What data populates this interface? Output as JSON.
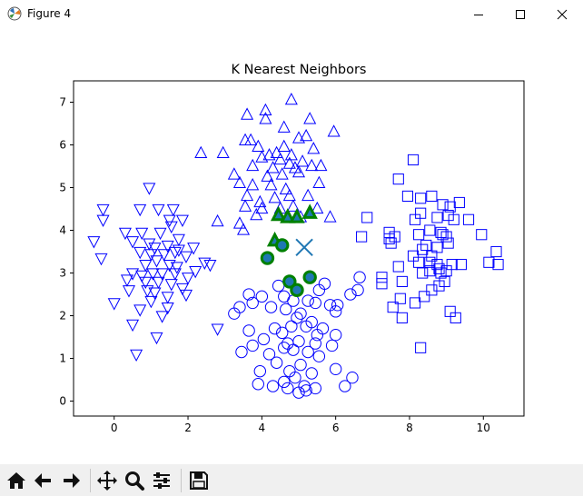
{
  "window": {
    "title": "Figure 4",
    "app_icon": "matplotlib-icon",
    "controls": [
      "minimize-icon",
      "maximize-icon",
      "close-icon"
    ]
  },
  "toolbar": {
    "buttons": [
      "home-icon",
      "back-icon",
      "forward-icon",
      "pan-icon",
      "zoom-icon",
      "configure-subplots-icon",
      "save-icon"
    ]
  },
  "colors": {
    "marker_edge": "#0000ff",
    "neighbor_edge": "#008000",
    "neighbor_fill": "#1f77b4",
    "query_marker": "#1f77b4"
  },
  "chart_data": {
    "type": "scatter",
    "title": "K Nearest Neighbors",
    "xlabel": "",
    "ylabel": "",
    "xlim": [
      -1.1,
      11.1
    ],
    "ylim": [
      -0.35,
      7.5
    ],
    "xticks": [
      0,
      2,
      4,
      6,
      8,
      10
    ],
    "yticks": [
      0,
      1,
      2,
      3,
      4,
      5,
      6,
      7
    ],
    "grid": false,
    "series": [
      {
        "marker": "triangle-up",
        "points": [
          [
            4.8,
            7.05
          ],
          [
            4.1,
            6.8
          ],
          [
            3.6,
            6.7
          ],
          [
            4.1,
            6.6
          ],
          [
            5.3,
            6.6
          ],
          [
            4.6,
            6.4
          ],
          [
            5.95,
            6.3
          ],
          [
            3.55,
            6.1
          ],
          [
            3.7,
            6.1
          ],
          [
            5.0,
            6.15
          ],
          [
            5.2,
            6.2
          ],
          [
            3.9,
            5.95
          ],
          [
            4.6,
            5.95
          ],
          [
            4.2,
            5.75
          ],
          [
            4.4,
            5.8
          ],
          [
            4.8,
            5.75
          ],
          [
            5.4,
            5.9
          ],
          [
            2.35,
            5.8
          ],
          [
            2.95,
            5.8
          ],
          [
            4.0,
            5.7
          ],
          [
            4.5,
            5.65
          ],
          [
            4.75,
            5.55
          ],
          [
            5.1,
            5.6
          ],
          [
            3.75,
            5.5
          ],
          [
            5.35,
            5.5
          ],
          [
            4.3,
            5.45
          ],
          [
            4.9,
            5.45
          ],
          [
            5.6,
            5.5
          ],
          [
            3.25,
            5.3
          ],
          [
            4.15,
            5.25
          ],
          [
            4.55,
            5.3
          ],
          [
            5.0,
            5.35
          ],
          [
            3.4,
            5.1
          ],
          [
            3.75,
            5.05
          ],
          [
            4.25,
            5.05
          ],
          [
            4.65,
            4.95
          ],
          [
            5.55,
            5.1
          ],
          [
            3.6,
            4.8
          ],
          [
            3.95,
            4.65
          ],
          [
            4.35,
            4.75
          ],
          [
            4.75,
            4.8
          ],
          [
            5.25,
            4.8
          ],
          [
            3.55,
            4.55
          ],
          [
            4.0,
            4.5
          ],
          [
            4.5,
            4.5
          ],
          [
            4.85,
            4.55
          ],
          [
            5.5,
            4.5
          ],
          [
            3.85,
            4.35
          ],
          [
            5.05,
            4.3
          ],
          [
            5.85,
            4.3
          ],
          [
            2.8,
            4.2
          ],
          [
            3.4,
            4.15
          ],
          [
            3.5,
            4.0
          ]
        ]
      },
      {
        "marker": "triangle-down",
        "points": [
          [
            0.95,
            5.0
          ],
          [
            -0.3,
            4.5
          ],
          [
            0.7,
            4.5
          ],
          [
            1.2,
            4.5
          ],
          [
            1.6,
            4.5
          ],
          [
            -0.3,
            4.25
          ],
          [
            1.5,
            4.25
          ],
          [
            1.85,
            4.25
          ],
          [
            1.55,
            4.1
          ],
          [
            0.3,
            3.95
          ],
          [
            0.75,
            3.95
          ],
          [
            1.25,
            3.95
          ],
          [
            1.75,
            3.8
          ],
          [
            -0.55,
            3.75
          ],
          [
            0.5,
            3.75
          ],
          [
            0.95,
            3.7
          ],
          [
            1.1,
            3.6
          ],
          [
            1.45,
            3.65
          ],
          [
            1.75,
            3.55
          ],
          [
            2.15,
            3.6
          ],
          [
            0.7,
            3.5
          ],
          [
            1.0,
            3.45
          ],
          [
            1.35,
            3.45
          ],
          [
            1.65,
            3.5
          ],
          [
            1.95,
            3.4
          ],
          [
            -0.35,
            3.35
          ],
          [
            1.15,
            3.3
          ],
          [
            2.45,
            3.25
          ],
          [
            2.6,
            3.2
          ],
          [
            0.85,
            3.2
          ],
          [
            1.5,
            3.2
          ],
          [
            1.7,
            3.15
          ],
          [
            2.2,
            3.05
          ],
          [
            0.5,
            3.0
          ],
          [
            0.75,
            2.95
          ],
          [
            1.05,
            3.0
          ],
          [
            1.3,
            3.0
          ],
          [
            1.65,
            3.0
          ],
          [
            2.0,
            2.9
          ],
          [
            0.35,
            2.85
          ],
          [
            0.85,
            2.8
          ],
          [
            1.2,
            2.8
          ],
          [
            1.55,
            2.75
          ],
          [
            1.85,
            2.65
          ],
          [
            0.9,
            2.6
          ],
          [
            0.4,
            2.6
          ],
          [
            1.1,
            2.55
          ],
          [
            1.45,
            2.45
          ],
          [
            1.95,
            2.5
          ],
          [
            0.0,
            2.3
          ],
          [
            1.0,
            2.35
          ],
          [
            1.45,
            2.2
          ],
          [
            0.7,
            2.15
          ],
          [
            1.3,
            2.0
          ],
          [
            0.5,
            1.8
          ],
          [
            0.6,
            1.1
          ],
          [
            1.15,
            1.5
          ],
          [
            2.8,
            1.7
          ]
        ]
      },
      {
        "marker": "square",
        "points": [
          [
            8.1,
            5.65
          ],
          [
            7.7,
            5.2
          ],
          [
            7.95,
            4.8
          ],
          [
            8.3,
            4.75
          ],
          [
            8.6,
            4.8
          ],
          [
            9.35,
            4.65
          ],
          [
            8.9,
            4.6
          ],
          [
            9.1,
            4.55
          ],
          [
            6.85,
            4.3
          ],
          [
            8.3,
            4.4
          ],
          [
            8.75,
            4.3
          ],
          [
            9.05,
            4.35
          ],
          [
            9.2,
            4.25
          ],
          [
            9.6,
            4.25
          ],
          [
            8.15,
            4.25
          ],
          [
            7.45,
            3.95
          ],
          [
            8.55,
            4.0
          ],
          [
            8.85,
            3.95
          ],
          [
            9.95,
            3.9
          ],
          [
            6.7,
            3.85
          ],
          [
            7.45,
            3.8
          ],
          [
            7.6,
            3.85
          ],
          [
            8.25,
            3.9
          ],
          [
            8.9,
            3.9
          ],
          [
            9.05,
            3.7
          ],
          [
            7.5,
            3.7
          ],
          [
            8.45,
            3.65
          ],
          [
            8.75,
            3.6
          ],
          [
            9.0,
            3.85
          ],
          [
            8.35,
            3.55
          ],
          [
            8.1,
            3.4
          ],
          [
            8.6,
            3.4
          ],
          [
            10.35,
            3.5
          ],
          [
            8.25,
            3.25
          ],
          [
            8.55,
            3.25
          ],
          [
            8.75,
            3.2
          ],
          [
            9.15,
            3.2
          ],
          [
            9.4,
            3.2
          ],
          [
            10.15,
            3.25
          ],
          [
            10.4,
            3.2
          ],
          [
            7.7,
            3.15
          ],
          [
            8.8,
            3.1
          ],
          [
            8.85,
            3.0
          ],
          [
            8.55,
            3.05
          ],
          [
            7.25,
            2.9
          ],
          [
            8.35,
            3.0
          ],
          [
            9.0,
            3.05
          ],
          [
            8.95,
            2.8
          ],
          [
            7.8,
            2.8
          ],
          [
            7.25,
            2.75
          ],
          [
            8.8,
            2.7
          ],
          [
            8.6,
            2.6
          ],
          [
            8.4,
            2.45
          ],
          [
            7.75,
            2.4
          ],
          [
            7.55,
            2.2
          ],
          [
            8.15,
            2.3
          ],
          [
            9.1,
            2.1
          ],
          [
            9.25,
            1.95
          ],
          [
            7.8,
            1.95
          ],
          [
            8.3,
            1.25
          ]
        ]
      },
      {
        "marker": "circle",
        "points": [
          [
            6.65,
            2.9
          ],
          [
            5.7,
            2.75
          ],
          [
            4.45,
            2.7
          ],
          [
            5.55,
            2.6
          ],
          [
            6.6,
            2.6
          ],
          [
            3.65,
            2.5
          ],
          [
            4.0,
            2.45
          ],
          [
            4.6,
            2.45
          ],
          [
            6.4,
            2.5
          ],
          [
            4.85,
            2.35
          ],
          [
            5.25,
            2.35
          ],
          [
            3.75,
            2.3
          ],
          [
            5.45,
            2.3
          ],
          [
            5.85,
            2.25
          ],
          [
            6.05,
            2.25
          ],
          [
            3.4,
            2.2
          ],
          [
            4.25,
            2.2
          ],
          [
            4.65,
            2.15
          ],
          [
            5.05,
            2.05
          ],
          [
            3.25,
            2.05
          ],
          [
            4.95,
            1.95
          ],
          [
            5.35,
            1.85
          ],
          [
            6.0,
            2.1
          ],
          [
            4.8,
            1.75
          ],
          [
            5.2,
            1.75
          ],
          [
            5.65,
            1.7
          ],
          [
            6.0,
            1.55
          ],
          [
            4.35,
            1.7
          ],
          [
            3.65,
            1.65
          ],
          [
            4.55,
            1.6
          ],
          [
            5.5,
            1.55
          ],
          [
            5.0,
            1.4
          ],
          [
            4.7,
            1.35
          ],
          [
            5.45,
            1.35
          ],
          [
            4.05,
            1.45
          ],
          [
            5.9,
            1.3
          ],
          [
            3.75,
            1.3
          ],
          [
            4.6,
            1.25
          ],
          [
            5.25,
            1.15
          ],
          [
            4.85,
            1.2
          ],
          [
            3.45,
            1.15
          ],
          [
            4.2,
            1.1
          ],
          [
            5.55,
            1.05
          ],
          [
            4.4,
            0.9
          ],
          [
            5.05,
            0.85
          ],
          [
            4.75,
            0.7
          ],
          [
            3.95,
            0.7
          ],
          [
            5.35,
            0.65
          ],
          [
            4.9,
            0.55
          ],
          [
            4.6,
            0.45
          ],
          [
            6.45,
            0.55
          ],
          [
            3.9,
            0.4
          ],
          [
            4.3,
            0.35
          ],
          [
            5.15,
            0.35
          ],
          [
            4.7,
            0.3
          ],
          [
            5.45,
            0.3
          ],
          [
            5.2,
            0.25
          ],
          [
            5.0,
            0.2
          ],
          [
            6.25,
            0.35
          ],
          [
            6.0,
            0.75
          ]
        ]
      }
    ],
    "neighbors": {
      "triangle-up": [
        [
          4.45,
          4.35
        ],
        [
          4.7,
          4.3
        ],
        [
          4.95,
          4.3
        ],
        [
          5.3,
          4.4
        ],
        [
          4.35,
          3.75
        ]
      ],
      "circle": [
        [
          4.55,
          3.65
        ],
        [
          4.15,
          3.35
        ],
        [
          4.75,
          2.8
        ],
        [
          5.3,
          2.9
        ],
        [
          4.95,
          2.6
        ]
      ]
    },
    "query_point": {
      "marker": "x",
      "x": 5.15,
      "y": 3.6
    }
  }
}
